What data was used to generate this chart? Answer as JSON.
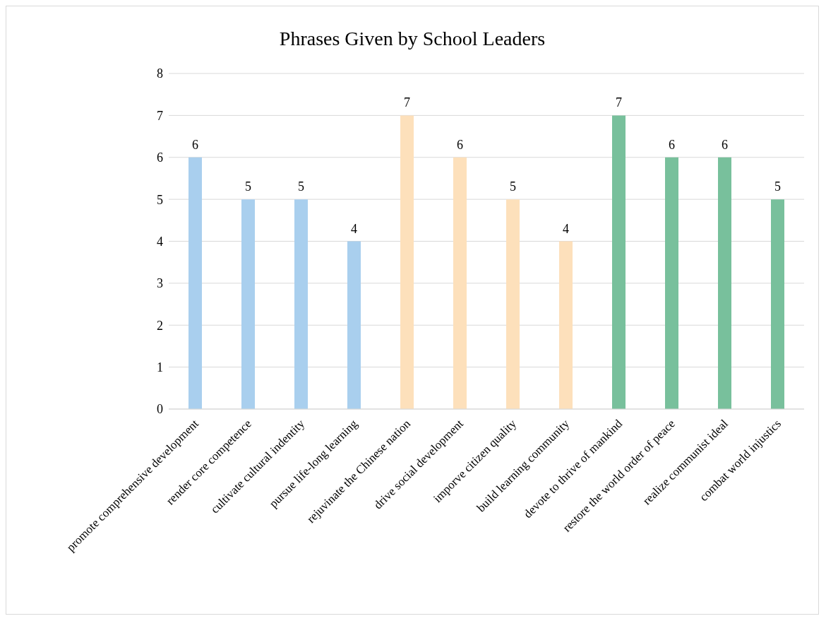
{
  "chart_data": {
    "type": "bar",
    "title": "Phrases Given by School Leaders",
    "categories": [
      "promote comprehensive development",
      "render core competence",
      "cultivate cultural indentity",
      "pursue life-long learning",
      "rejuvinate the Chinese nation",
      "drive social development",
      "imporve citizen quality",
      "build learning community",
      "devote to thrive of mankind",
      "restore the world order of peace",
      "realize communist ideal",
      "combat world injustics"
    ],
    "values": [
      6,
      5,
      5,
      4,
      7,
      6,
      5,
      4,
      7,
      6,
      6,
      5
    ],
    "colors": [
      "#a9cfee",
      "#a9cfee",
      "#a9cfee",
      "#a9cfee",
      "#fde0bb",
      "#fde0bb",
      "#fde0bb",
      "#fde0bb",
      "#78c09c",
      "#78c09c",
      "#78c09c",
      "#78c09c"
    ],
    "ylim": [
      0,
      8
    ],
    "yticks": [
      0,
      1,
      2,
      3,
      4,
      5,
      6,
      7,
      8
    ],
    "grid": "y",
    "data_labels": true
  }
}
